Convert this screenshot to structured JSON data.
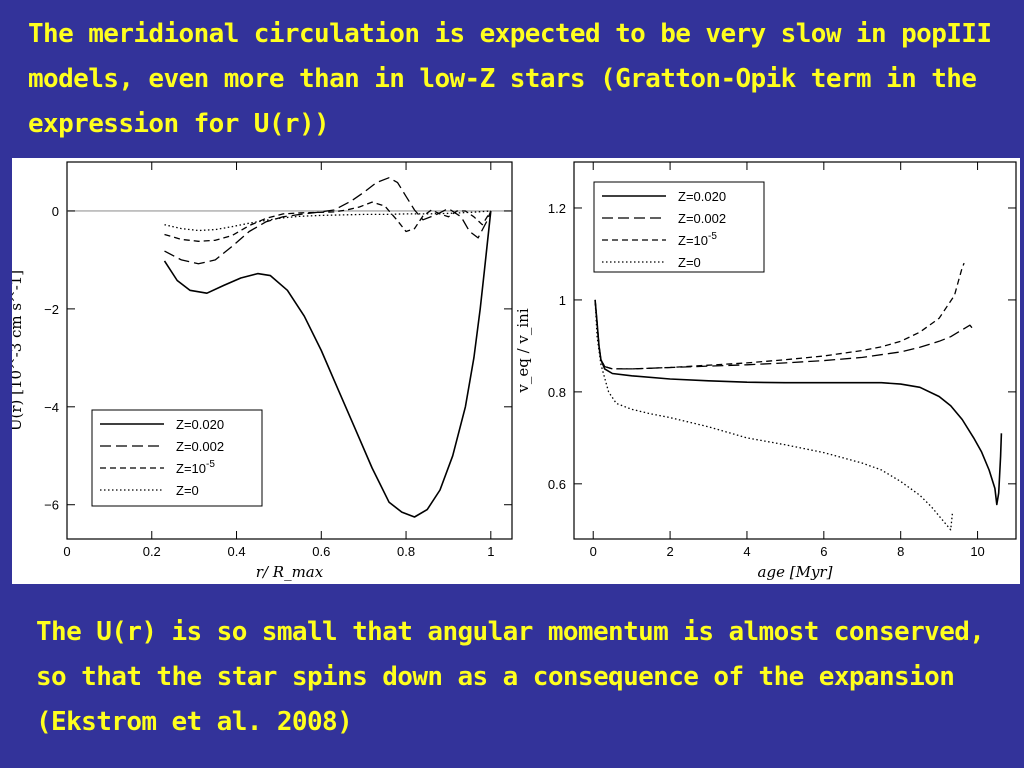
{
  "slide": {
    "top_text": "The meridional circulation is expected to be very slow in popIII models, even more than in low-Z stars (Gratton-Opik term in the expression for U(r))",
    "bottom_text": "The U(r) is so small that angular momentum is almost conserved, so that the star spins down as a consequence of the expansion (Ekstrom et al. 2008)"
  },
  "chart_data": [
    {
      "type": "line",
      "xlabel": "r/ R_max",
      "ylabel": "U(r) [10^-3 cm s^-1]",
      "xlim": [
        0,
        1.05
      ],
      "ylim": [
        -6.7,
        1
      ],
      "xticks": [
        0,
        0.2,
        0.4,
        0.6,
        0.8,
        1
      ],
      "xtick_labels": [
        "0",
        "0.2",
        "0.4",
        "0.6",
        "0.8",
        "1"
      ],
      "yticks": [
        0,
        -2,
        -4,
        -6
      ],
      "ytick_labels": [
        "0",
        "−2",
        "−4",
        "−6"
      ],
      "reference_line_y": 0,
      "legend_position": "lower-left",
      "series": [
        {
          "name": "Z=0.020",
          "style": "solid",
          "x": [
            0.23,
            0.26,
            0.29,
            0.33,
            0.37,
            0.41,
            0.45,
            0.48,
            0.52,
            0.56,
            0.6,
            0.64,
            0.68,
            0.72,
            0.76,
            0.79,
            0.82,
            0.85,
            0.88,
            0.91,
            0.94,
            0.96,
            0.975,
            0.985,
            0.995,
            1.0
          ],
          "y": [
            -1.02,
            -1.42,
            -1.62,
            -1.68,
            -1.52,
            -1.37,
            -1.28,
            -1.32,
            -1.62,
            -2.15,
            -2.85,
            -3.65,
            -4.45,
            -5.25,
            -5.95,
            -6.15,
            -6.25,
            -6.1,
            -5.7,
            -5.0,
            -4.0,
            -3.0,
            -2.0,
            -1.2,
            -0.4,
            0.0
          ]
        },
        {
          "name": "Z=0.002",
          "style": "long-dash",
          "x": [
            0.23,
            0.27,
            0.31,
            0.35,
            0.39,
            0.43,
            0.47,
            0.51,
            0.55,
            0.59,
            0.63,
            0.67,
            0.7,
            0.73,
            0.76,
            0.78,
            0.8,
            0.82,
            0.84,
            0.87,
            0.9,
            0.93,
            0.95,
            0.97,
            0.99,
            1.0
          ],
          "y": [
            -0.82,
            -1.0,
            -1.08,
            -1.0,
            -0.72,
            -0.42,
            -0.22,
            -0.12,
            -0.07,
            -0.03,
            0.02,
            0.2,
            0.38,
            0.58,
            0.68,
            0.58,
            0.3,
            0.02,
            -0.18,
            -0.08,
            0.05,
            -0.12,
            -0.42,
            -0.55,
            -0.22,
            0.0
          ]
        },
        {
          "name": "Z=10^-5",
          "style": "short-dash",
          "x": [
            0.23,
            0.27,
            0.31,
            0.35,
            0.39,
            0.43,
            0.47,
            0.51,
            0.55,
            0.59,
            0.63,
            0.66,
            0.69,
            0.72,
            0.75,
            0.78,
            0.8,
            0.82,
            0.84,
            0.86,
            0.88,
            0.9,
            0.92,
            0.94,
            0.96,
            0.98,
            1.0
          ],
          "y": [
            -0.48,
            -0.58,
            -0.62,
            -0.6,
            -0.5,
            -0.3,
            -0.15,
            -0.06,
            -0.04,
            -0.03,
            -0.02,
            0.02,
            0.08,
            0.18,
            0.1,
            -0.2,
            -0.42,
            -0.36,
            -0.1,
            0.02,
            -0.06,
            -0.12,
            0.0,
            0.0,
            -0.12,
            -0.28,
            0.0
          ]
        },
        {
          "name": "Z=0",
          "style": "dotted",
          "x": [
            0.23,
            0.27,
            0.31,
            0.35,
            0.39,
            0.43,
            0.47,
            0.51,
            0.55,
            0.6,
            0.65,
            0.7,
            0.75,
            0.8,
            0.85,
            0.9,
            0.95,
            1.0
          ],
          "y": [
            -0.28,
            -0.36,
            -0.4,
            -0.38,
            -0.32,
            -0.25,
            -0.19,
            -0.14,
            -0.11,
            -0.09,
            -0.08,
            -0.07,
            -0.07,
            -0.06,
            -0.06,
            -0.05,
            -0.03,
            0.0
          ]
        }
      ]
    },
    {
      "type": "line",
      "xlabel": "age [Myr]",
      "ylabel": "v_eq / v_ini",
      "xlim": [
        -0.5,
        11
      ],
      "ylim": [
        0.48,
        1.3
      ],
      "xticks": [
        0,
        2,
        4,
        6,
        8,
        10
      ],
      "xtick_labels": [
        "0",
        "2",
        "4",
        "6",
        "8",
        "10"
      ],
      "yticks": [
        0.6,
        0.8,
        1,
        1.2
      ],
      "ytick_labels": [
        "0.6",
        "0.8",
        "1",
        "1.2"
      ],
      "legend_position": "top-left",
      "series": [
        {
          "name": "Z=0.020",
          "style": "solid",
          "x": [
            0.05,
            0.1,
            0.15,
            0.2,
            0.3,
            0.5,
            1,
            2,
            3,
            4,
            5,
            6,
            7,
            7.5,
            8,
            8.5,
            9,
            9.3,
            9.6,
            9.9,
            10.1,
            10.3,
            10.45,
            10.5,
            10.55,
            10.6,
            10.62
          ],
          "y": [
            1.0,
            0.95,
            0.9,
            0.87,
            0.85,
            0.84,
            0.835,
            0.828,
            0.824,
            0.821,
            0.82,
            0.82,
            0.82,
            0.82,
            0.817,
            0.81,
            0.79,
            0.77,
            0.74,
            0.7,
            0.67,
            0.63,
            0.59,
            0.555,
            0.58,
            0.66,
            0.71
          ]
        },
        {
          "name": "Z=0.002",
          "style": "long-dash",
          "x": [
            0.05,
            0.1,
            0.15,
            0.2,
            0.3,
            0.5,
            1,
            2,
            3,
            4,
            5,
            6,
            7,
            8,
            8.5,
            9,
            9.3,
            9.6,
            9.8,
            9.9
          ],
          "y": [
            1.0,
            0.95,
            0.9,
            0.87,
            0.855,
            0.85,
            0.85,
            0.853,
            0.856,
            0.859,
            0.863,
            0.868,
            0.875,
            0.887,
            0.897,
            0.91,
            0.92,
            0.935,
            0.945,
            0.935
          ]
        },
        {
          "name": "Z=10^-5",
          "style": "short-dash",
          "x": [
            0.05,
            0.1,
            0.15,
            0.2,
            0.3,
            0.5,
            1,
            2,
            3,
            4,
            5,
            6,
            7,
            7.5,
            8,
            8.5,
            9,
            9.2,
            9.4,
            9.5,
            9.6,
            9.65
          ],
          "y": [
            1.0,
            0.95,
            0.9,
            0.87,
            0.855,
            0.85,
            0.85,
            0.853,
            0.858,
            0.863,
            0.87,
            0.878,
            0.89,
            0.898,
            0.91,
            0.93,
            0.96,
            0.985,
            1.01,
            1.04,
            1.07,
            1.08
          ]
        },
        {
          "name": "Z=0",
          "style": "dotted",
          "x": [
            0.05,
            0.1,
            0.2,
            0.3,
            0.4,
            0.6,
            1,
            1.5,
            2,
            3,
            4,
            5,
            6,
            7,
            7.5,
            8,
            8.5,
            8.8,
            9,
            9.2,
            9.3,
            9.35
          ],
          "y": [
            1.0,
            0.92,
            0.86,
            0.83,
            0.8,
            0.775,
            0.762,
            0.752,
            0.744,
            0.724,
            0.7,
            0.685,
            0.668,
            0.645,
            0.63,
            0.605,
            0.575,
            0.55,
            0.53,
            0.51,
            0.5,
            0.54
          ]
        }
      ]
    }
  ]
}
